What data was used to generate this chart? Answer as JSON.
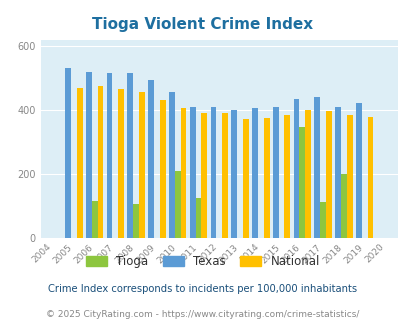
{
  "title": "Tioga Violent Crime Index",
  "years": [
    2004,
    2005,
    2006,
    2007,
    2008,
    2009,
    2010,
    2011,
    2012,
    2013,
    2014,
    2015,
    2016,
    2017,
    2018,
    2019,
    2020
  ],
  "tioga": [
    0,
    0,
    115,
    0,
    105,
    0,
    210,
    125,
    0,
    0,
    0,
    0,
    345,
    110,
    200,
    0,
    0
  ],
  "texas": [
    0,
    530,
    520,
    515,
    515,
    495,
    455,
    410,
    410,
    400,
    405,
    410,
    435,
    440,
    410,
    420,
    0
  ],
  "national": [
    0,
    470,
    475,
    465,
    455,
    430,
    405,
    390,
    390,
    370,
    375,
    383,
    400,
    395,
    385,
    378,
    0
  ],
  "bar_width": 0.28,
  "tioga_color": "#8dc63f",
  "texas_color": "#5b9bd5",
  "national_color": "#ffc000",
  "bg_color": "#ddeef6",
  "title_color": "#1e6fa0",
  "ylim": [
    0,
    620
  ],
  "yticks": [
    0,
    200,
    400,
    600
  ],
  "footnote1": "Crime Index corresponds to incidents per 100,000 inhabitants",
  "footnote2": "© 2025 CityRating.com - https://www.cityrating.com/crime-statistics/",
  "legend_labels": [
    "Tioga",
    "Texas",
    "National"
  ]
}
